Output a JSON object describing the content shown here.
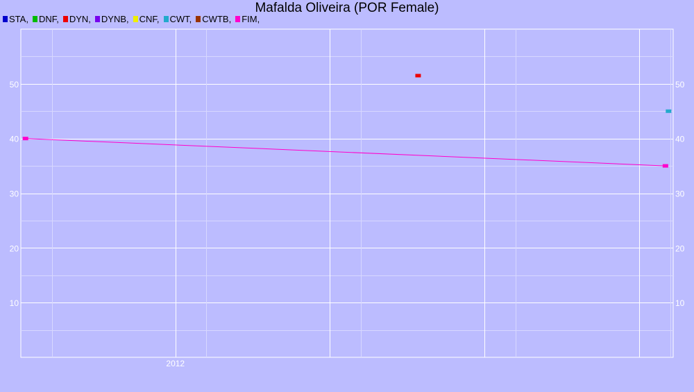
{
  "chart_data": {
    "type": "scatter",
    "title": "Mafalda Oliveira (POR Female)",
    "xlabel": "",
    "ylabel": "",
    "x_tick_labels": [
      {
        "label": "2012",
        "x": 2012.0
      }
    ],
    "xlim": [
      2011.0,
      2015.22
    ],
    "ylim": [
      0,
      60
    ],
    "y_ticks": [
      10,
      20,
      30,
      40,
      50
    ],
    "grid": true,
    "legend_placement": "top-left",
    "legend": [
      {
        "name": "STA,",
        "color": "#0000cc"
      },
      {
        "name": "DNF,",
        "color": "#00bb00"
      },
      {
        "name": "DYN,",
        "color": "#ee0000"
      },
      {
        "name": "DYNB,",
        "color": "#7700ee"
      },
      {
        "name": "CNF,",
        "color": "#eeee00"
      },
      {
        "name": "CWT,",
        "color": "#22aacc"
      },
      {
        "name": "CWTB,",
        "color": "#993300"
      },
      {
        "name": "FIM,",
        "color": "#ff00cc"
      }
    ],
    "series": [
      {
        "name": "DYN,",
        "color": "#ee0000",
        "points": [
          {
            "x": 2013.57,
            "y": 51.5
          }
        ]
      },
      {
        "name": "CWT,",
        "color": "#22aacc",
        "points": [
          {
            "x": 2015.19,
            "y": 45
          }
        ]
      },
      {
        "name": "FIM,",
        "color": "#ff00cc",
        "points": [
          {
            "x": 2011.03,
            "y": 40
          },
          {
            "x": 2015.17,
            "y": 35
          }
        ]
      }
    ],
    "trend_line": {
      "color": "#ff00cc",
      "from": {
        "x": 2011.03,
        "y": 40
      },
      "to": {
        "x": 2015.17,
        "y": 35
      }
    }
  }
}
